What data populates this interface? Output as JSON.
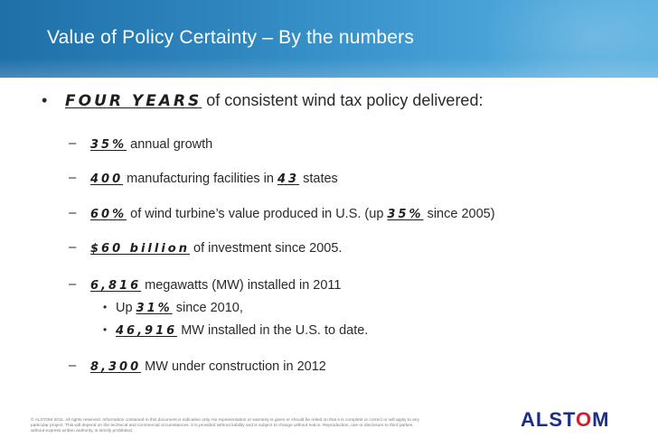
{
  "slide": {
    "title": "Value of Policy Certainty – By the numbers",
    "main_bullet": {
      "marker": "•",
      "emphasis": "FOUR YEARS",
      "text": " of consistent wind tax policy delivered:"
    },
    "items": [
      {
        "marker": "–",
        "emphasis": "35%",
        "text": " annual growth"
      },
      {
        "marker": "–",
        "emphasis": "400",
        "text": " manufacturing facilities in ",
        "emphasis2": "43",
        "text2": " states"
      },
      {
        "marker": "–",
        "emphasis": "60%",
        "text": " of wind turbine’s value produced in U.S. (up ",
        "emphasis2": "35%",
        "text2": " since 2005)"
      },
      {
        "marker": "–",
        "emphasis": "$60 billion",
        "text": " of investment since 2005."
      },
      {
        "marker": "–",
        "emphasis": "6,816",
        "text": " megawatts (MW) installed in 2011"
      },
      {
        "marker": "–",
        "emphasis": "8,300",
        "text": " MW under construction in 2012"
      }
    ],
    "sub_items": [
      {
        "marker": "•",
        "prefix": "Up ",
        "emphasis": "31%",
        "text": " since 2010,"
      },
      {
        "marker": "•",
        "prefix": "",
        "emphasis": "46,916",
        "text": " MW installed in the U.S. to date."
      }
    ]
  },
  "footer": {
    "disclaimer": "© ALSTOM 2011. All rights reserved. Information contained in this document is indicative only. No representation or warranty is given or should be relied on that it is complete or correct or will apply to any particular project. This will depend on the technical and commercial circumstances. It is provided without liability and is subject to change without notice. Reproduction, use or disclosure to third parties, without express written authority, is strictly prohibited.",
    "logo": {
      "part1": "ALST",
      "part2": "O",
      "part3": "M"
    }
  },
  "colors": {
    "title_bar": "#2f86bf",
    "logo_blue": "#1c2f88",
    "logo_red": "#d0202e"
  }
}
